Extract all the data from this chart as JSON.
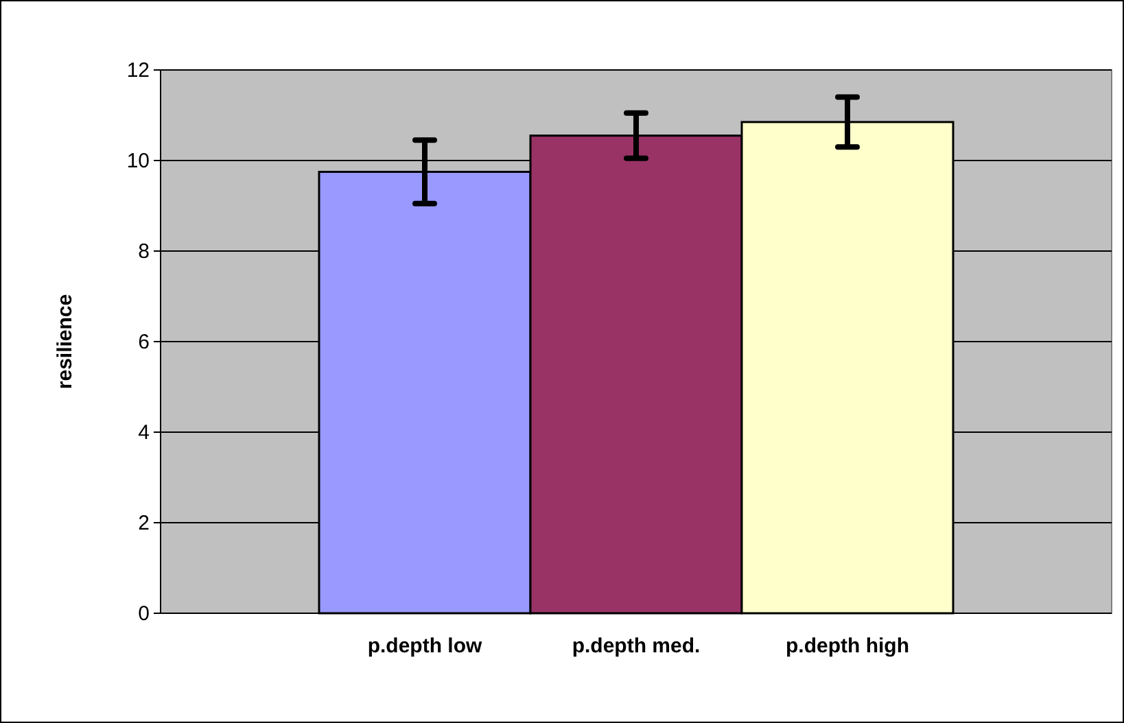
{
  "chart_data": {
    "type": "bar",
    "ylabel": "resilience",
    "categories": [
      "p.depth low",
      "p.depth med.",
      "p.depth high"
    ],
    "values": [
      9.75,
      10.55,
      10.85
    ],
    "colors": [
      "#9999ff",
      "#993366",
      "#ffffcc"
    ],
    "errors": [
      0.7,
      0.5,
      0.55
    ],
    "ylim": [
      0,
      12
    ],
    "yticks": [
      0,
      2,
      4,
      6,
      8,
      10,
      12
    ],
    "grid": "y"
  }
}
